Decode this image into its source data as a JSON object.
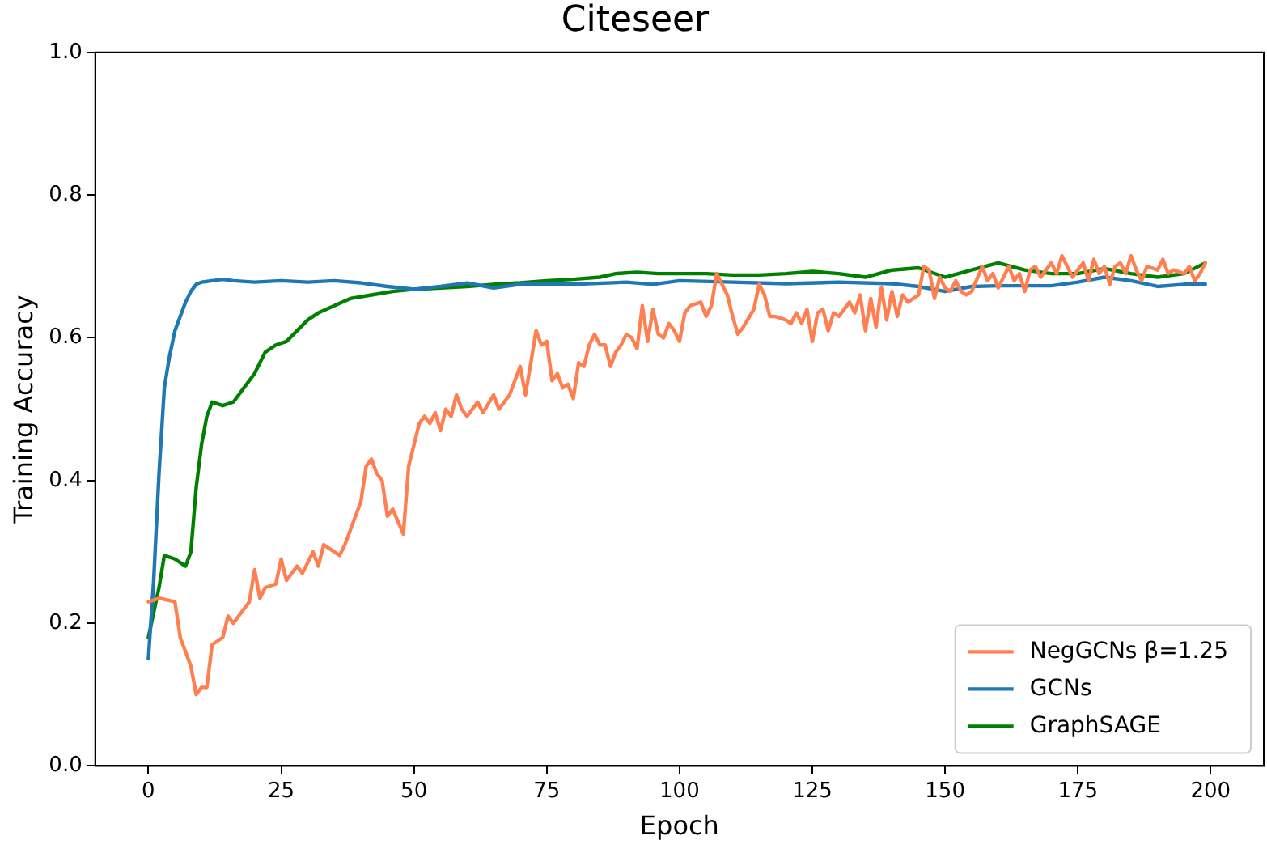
{
  "chart_data": {
    "type": "line",
    "title": "Citeseer",
    "xlabel": "Epoch",
    "ylabel": "Training Accuracy",
    "xlim": [
      -10,
      210
    ],
    "xticks": [
      0,
      25,
      50,
      75,
      100,
      125,
      150,
      175,
      200
    ],
    "ylim": [
      0,
      1
    ],
    "yticks": [
      {
        "value": 0,
        "label": "0.0"
      },
      {
        "value": 0.2,
        "label": "0.2"
      },
      {
        "value": 0.4,
        "label": "0.4"
      },
      {
        "value": 0.6,
        "label": "0.6"
      },
      {
        "value": 0.8,
        "label": "0.8"
      },
      {
        "value": 1,
        "label": "1.0"
      }
    ],
    "grid": false,
    "legend": "bottom right",
    "marker": "none",
    "line_style": "solid",
    "series": [
      {
        "name": "NegGCNs β=1.25",
        "color": "#ff7f50",
        "x": [
          0,
          2,
          5,
          6,
          8,
          9,
          10,
          11,
          12,
          14,
          15,
          16,
          18,
          19,
          20,
          21,
          22,
          24,
          25,
          26,
          28,
          29,
          31,
          32,
          33,
          35,
          36,
          37,
          39,
          40,
          41,
          42,
          43,
          44,
          45,
          46,
          48,
          49,
          50,
          51,
          52,
          53,
          54,
          55,
          56,
          57,
          58,
          59,
          60,
          61,
          62,
          63,
          65,
          66,
          67,
          68,
          70,
          71,
          72,
          73,
          74,
          75,
          76,
          77,
          78,
          79,
          80,
          81,
          82,
          83,
          84,
          85,
          86,
          87,
          88,
          89,
          90,
          91,
          92,
          93,
          94,
          95,
          96,
          97,
          98,
          99,
          100,
          101,
          102,
          104,
          105,
          106,
          107,
          108,
          109,
          110,
          111,
          112,
          114,
          115,
          116,
          117,
          118,
          120,
          121,
          122,
          123,
          124,
          125,
          126,
          127,
          128,
          129,
          130,
          131,
          132,
          133,
          134,
          135,
          136,
          137,
          138,
          139,
          140,
          141,
          142,
          143,
          145,
          146,
          147,
          148,
          149,
          150,
          151,
          152,
          153,
          154,
          155,
          157,
          158,
          159,
          160,
          162,
          163,
          164,
          165,
          166,
          167,
          168,
          169,
          170,
          171,
          172,
          173,
          174,
          175,
          176,
          177,
          178,
          179,
          180,
          181,
          182,
          183,
          184,
          185,
          186,
          187,
          188,
          190,
          191,
          192,
          193,
          195,
          196,
          197,
          198,
          199
        ],
        "values": [
          0.23,
          0.235,
          0.23,
          0.18,
          0.14,
          0.1,
          0.11,
          0.11,
          0.17,
          0.18,
          0.21,
          0.2,
          0.22,
          0.23,
          0.275,
          0.235,
          0.25,
          0.255,
          0.29,
          0.26,
          0.28,
          0.27,
          0.3,
          0.28,
          0.31,
          0.3,
          0.295,
          0.31,
          0.35,
          0.37,
          0.42,
          0.43,
          0.41,
          0.4,
          0.35,
          0.36,
          0.325,
          0.42,
          0.45,
          0.48,
          0.49,
          0.48,
          0.495,
          0.47,
          0.5,
          0.49,
          0.52,
          0.5,
          0.49,
          0.5,
          0.51,
          0.495,
          0.52,
          0.5,
          0.51,
          0.52,
          0.56,
          0.52,
          0.565,
          0.61,
          0.59,
          0.595,
          0.54,
          0.55,
          0.53,
          0.535,
          0.515,
          0.565,
          0.56,
          0.59,
          0.605,
          0.59,
          0.59,
          0.56,
          0.58,
          0.59,
          0.605,
          0.6,
          0.585,
          0.645,
          0.595,
          0.64,
          0.605,
          0.6,
          0.62,
          0.61,
          0.595,
          0.635,
          0.645,
          0.65,
          0.63,
          0.645,
          0.69,
          0.675,
          0.66,
          0.63,
          0.605,
          0.615,
          0.64,
          0.675,
          0.66,
          0.63,
          0.63,
          0.625,
          0.62,
          0.635,
          0.62,
          0.64,
          0.595,
          0.635,
          0.64,
          0.61,
          0.635,
          0.63,
          0.64,
          0.65,
          0.635,
          0.66,
          0.61,
          0.655,
          0.615,
          0.67,
          0.625,
          0.665,
          0.63,
          0.66,
          0.65,
          0.66,
          0.7,
          0.695,
          0.655,
          0.685,
          0.67,
          0.665,
          0.68,
          0.665,
          0.66,
          0.665,
          0.7,
          0.68,
          0.69,
          0.67,
          0.7,
          0.68,
          0.69,
          0.665,
          0.695,
          0.7,
          0.685,
          0.695,
          0.705,
          0.69,
          0.715,
          0.7,
          0.685,
          0.695,
          0.705,
          0.68,
          0.71,
          0.69,
          0.7,
          0.675,
          0.7,
          0.705,
          0.69,
          0.715,
          0.695,
          0.68,
          0.7,
          0.695,
          0.71,
          0.69,
          0.695,
          0.69,
          0.7,
          0.68,
          0.69,
          0.705
        ]
      },
      {
        "name": "GCNs",
        "color": "#1f77b4",
        "x": [
          0,
          1,
          2,
          3,
          4,
          5,
          6,
          7,
          8,
          9,
          10,
          12,
          14,
          16,
          20,
          25,
          30,
          35,
          40,
          45,
          50,
          55,
          60,
          65,
          70,
          80,
          90,
          95,
          100,
          110,
          120,
          130,
          140,
          145,
          150,
          155,
          160,
          170,
          175,
          180,
          185,
          190,
          195,
          199
        ],
        "values": [
          0.15,
          0.26,
          0.41,
          0.53,
          0.575,
          0.61,
          0.63,
          0.65,
          0.665,
          0.675,
          0.678,
          0.68,
          0.682,
          0.68,
          0.678,
          0.68,
          0.678,
          0.68,
          0.677,
          0.672,
          0.668,
          0.672,
          0.677,
          0.67,
          0.675,
          0.675,
          0.678,
          0.675,
          0.68,
          0.678,
          0.676,
          0.678,
          0.676,
          0.672,
          0.665,
          0.672,
          0.673,
          0.673,
          0.678,
          0.685,
          0.68,
          0.672,
          0.675,
          0.675
        ]
      },
      {
        "name": "GraphSAGE",
        "color": "#008000",
        "x": [
          0,
          2,
          3,
          5,
          7,
          8,
          9,
          10,
          11,
          12,
          14,
          16,
          18,
          20,
          22,
          24,
          26,
          28,
          30,
          32,
          35,
          38,
          42,
          46,
          50,
          55,
          60,
          65,
          70,
          75,
          80,
          85,
          88,
          92,
          96,
          100,
          105,
          110,
          115,
          120,
          125,
          130,
          135,
          140,
          145,
          150,
          155,
          160,
          165,
          170,
          175,
          180,
          185,
          190,
          195,
          199
        ],
        "values": [
          0.18,
          0.25,
          0.295,
          0.29,
          0.28,
          0.3,
          0.39,
          0.45,
          0.49,
          0.51,
          0.505,
          0.51,
          0.53,
          0.55,
          0.58,
          0.59,
          0.595,
          0.61,
          0.625,
          0.635,
          0.645,
          0.655,
          0.66,
          0.665,
          0.668,
          0.67,
          0.672,
          0.675,
          0.677,
          0.68,
          0.682,
          0.685,
          0.69,
          0.692,
          0.69,
          0.69,
          0.69,
          0.688,
          0.688,
          0.69,
          0.693,
          0.69,
          0.685,
          0.695,
          0.698,
          0.685,
          0.695,
          0.705,
          0.695,
          0.69,
          0.69,
          0.697,
          0.69,
          0.685,
          0.69,
          0.705
        ]
      }
    ]
  }
}
